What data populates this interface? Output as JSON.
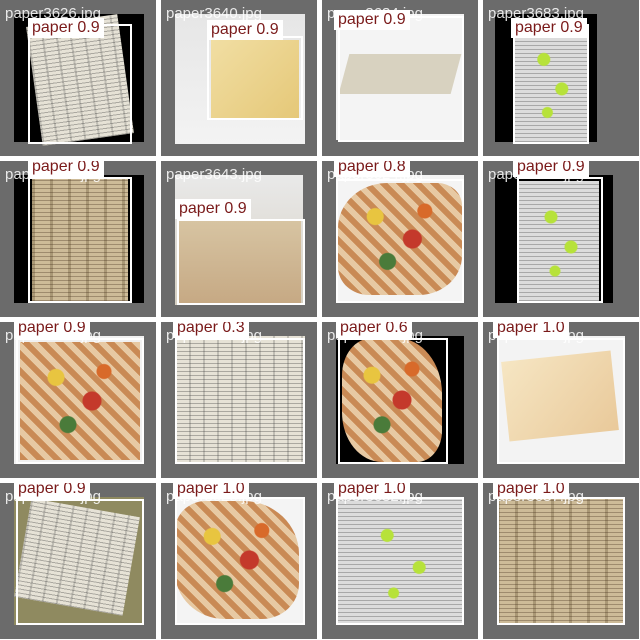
{
  "tiles": [
    {
      "filename": "paper3626.jpg",
      "label": "paper 0.9"
    },
    {
      "filename": "paper3640.jpg",
      "label": "paper 0.9"
    },
    {
      "filename": "paper3634.jpg",
      "label": "paper 0.9"
    },
    {
      "filename": "paper3683.jpg",
      "label": "paper 0.9"
    },
    {
      "filename": "paper3633.jpg",
      "label": "paper 0.9"
    },
    {
      "filename": "paper3643.jpg",
      "label": "paper 0.9"
    },
    {
      "filename": "paper3624.jpg",
      "label": "paper 0.8"
    },
    {
      "filename": "paper3685.jpg",
      "label": "paper 0.9"
    },
    {
      "filename": "paper3644.jpg",
      "label": "paper 0.9"
    },
    {
      "filename": "paper3639.jpg",
      "label": "paper 0.3"
    },
    {
      "filename": "paper3623.jpg",
      "label": "paper 0.6"
    },
    {
      "filename": "paper3660.jpg",
      "label": "paper 1.0"
    },
    {
      "filename": "paper3670.jpg",
      "label": "paper 0.9"
    },
    {
      "filename": "paper3625.jpg",
      "label": "paper 1.0"
    },
    {
      "filename": "paper3682.jpg",
      "label": "paper 1.0"
    },
    {
      "filename": "paper3687.jpg",
      "label": "paper 1.0"
    }
  ]
}
